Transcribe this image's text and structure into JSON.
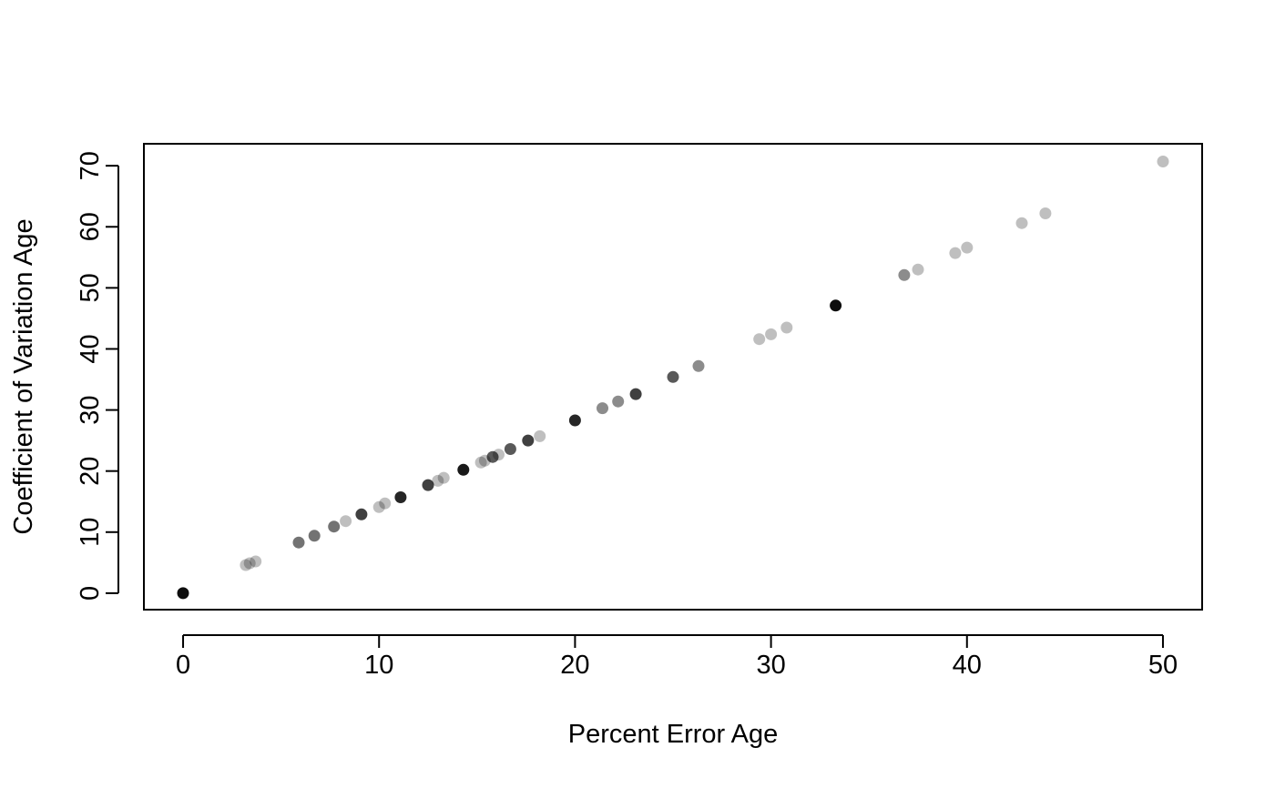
{
  "chart_data": {
    "type": "scatter",
    "title": "",
    "xlabel": "Percent Error Age",
    "ylabel": "Coefficient of Variation Age",
    "xlim": [
      -2,
      52
    ],
    "ylim": [
      -2.7,
      73.6
    ],
    "xticks": [
      0,
      10,
      20,
      30,
      40,
      50
    ],
    "yticks": [
      0,
      10,
      20,
      30,
      40,
      50,
      60,
      70
    ],
    "xtick_labels": [
      "0",
      "10",
      "20",
      "30",
      "40",
      "50"
    ],
    "ytick_labels": [
      "0",
      "10",
      "20",
      "30",
      "40",
      "50",
      "60",
      "70"
    ],
    "grid": false,
    "legend": "none",
    "point_color": "#000000",
    "points": [
      {
        "x": 0,
        "y": 0,
        "alpha": 0.95
      },
      {
        "x": 3.2,
        "y": 4.6,
        "alpha": 0.25
      },
      {
        "x": 3.4,
        "y": 4.9,
        "alpha": 0.25
      },
      {
        "x": 3.7,
        "y": 5.2,
        "alpha": 0.25
      },
      {
        "x": 5.9,
        "y": 8.3,
        "alpha": 0.55
      },
      {
        "x": 6.7,
        "y": 9.4,
        "alpha": 0.55
      },
      {
        "x": 7.7,
        "y": 10.9,
        "alpha": 0.55
      },
      {
        "x": 8.3,
        "y": 11.8,
        "alpha": 0.25
      },
      {
        "x": 9.1,
        "y": 12.9,
        "alpha": 0.75
      },
      {
        "x": 10.0,
        "y": 14.1,
        "alpha": 0.25
      },
      {
        "x": 10.3,
        "y": 14.7,
        "alpha": 0.25
      },
      {
        "x": 11.1,
        "y": 15.7,
        "alpha": 0.85
      },
      {
        "x": 12.5,
        "y": 17.7,
        "alpha": 0.75
      },
      {
        "x": 13.0,
        "y": 18.4,
        "alpha": 0.25
      },
      {
        "x": 13.3,
        "y": 18.9,
        "alpha": 0.25
      },
      {
        "x": 14.3,
        "y": 20.2,
        "alpha": 0.9
      },
      {
        "x": 15.2,
        "y": 21.4,
        "alpha": 0.25
      },
      {
        "x": 15.4,
        "y": 21.7,
        "alpha": 0.25
      },
      {
        "x": 15.8,
        "y": 22.3,
        "alpha": 0.65
      },
      {
        "x": 16.1,
        "y": 22.7,
        "alpha": 0.25
      },
      {
        "x": 16.7,
        "y": 23.6,
        "alpha": 0.65
      },
      {
        "x": 17.6,
        "y": 25.0,
        "alpha": 0.75
      },
      {
        "x": 18.2,
        "y": 25.7,
        "alpha": 0.25
      },
      {
        "x": 20.0,
        "y": 28.3,
        "alpha": 0.85
      },
      {
        "x": 21.4,
        "y": 30.3,
        "alpha": 0.45
      },
      {
        "x": 22.2,
        "y": 31.4,
        "alpha": 0.45
      },
      {
        "x": 23.1,
        "y": 32.6,
        "alpha": 0.75
      },
      {
        "x": 25.0,
        "y": 35.4,
        "alpha": 0.65
      },
      {
        "x": 26.3,
        "y": 37.2,
        "alpha": 0.45
      },
      {
        "x": 29.4,
        "y": 41.6,
        "alpha": 0.25
      },
      {
        "x": 30.0,
        "y": 42.4,
        "alpha": 0.25
      },
      {
        "x": 30.8,
        "y": 43.5,
        "alpha": 0.25
      },
      {
        "x": 33.3,
        "y": 47.1,
        "alpha": 0.95
      },
      {
        "x": 36.8,
        "y": 52.1,
        "alpha": 0.45
      },
      {
        "x": 37.5,
        "y": 53.0,
        "alpha": 0.25
      },
      {
        "x": 39.4,
        "y": 55.7,
        "alpha": 0.25
      },
      {
        "x": 40.0,
        "y": 56.6,
        "alpha": 0.25
      },
      {
        "x": 42.8,
        "y": 60.6,
        "alpha": 0.25
      },
      {
        "x": 44.0,
        "y": 62.2,
        "alpha": 0.25
      },
      {
        "x": 50.0,
        "y": 70.7,
        "alpha": 0.25
      }
    ]
  }
}
